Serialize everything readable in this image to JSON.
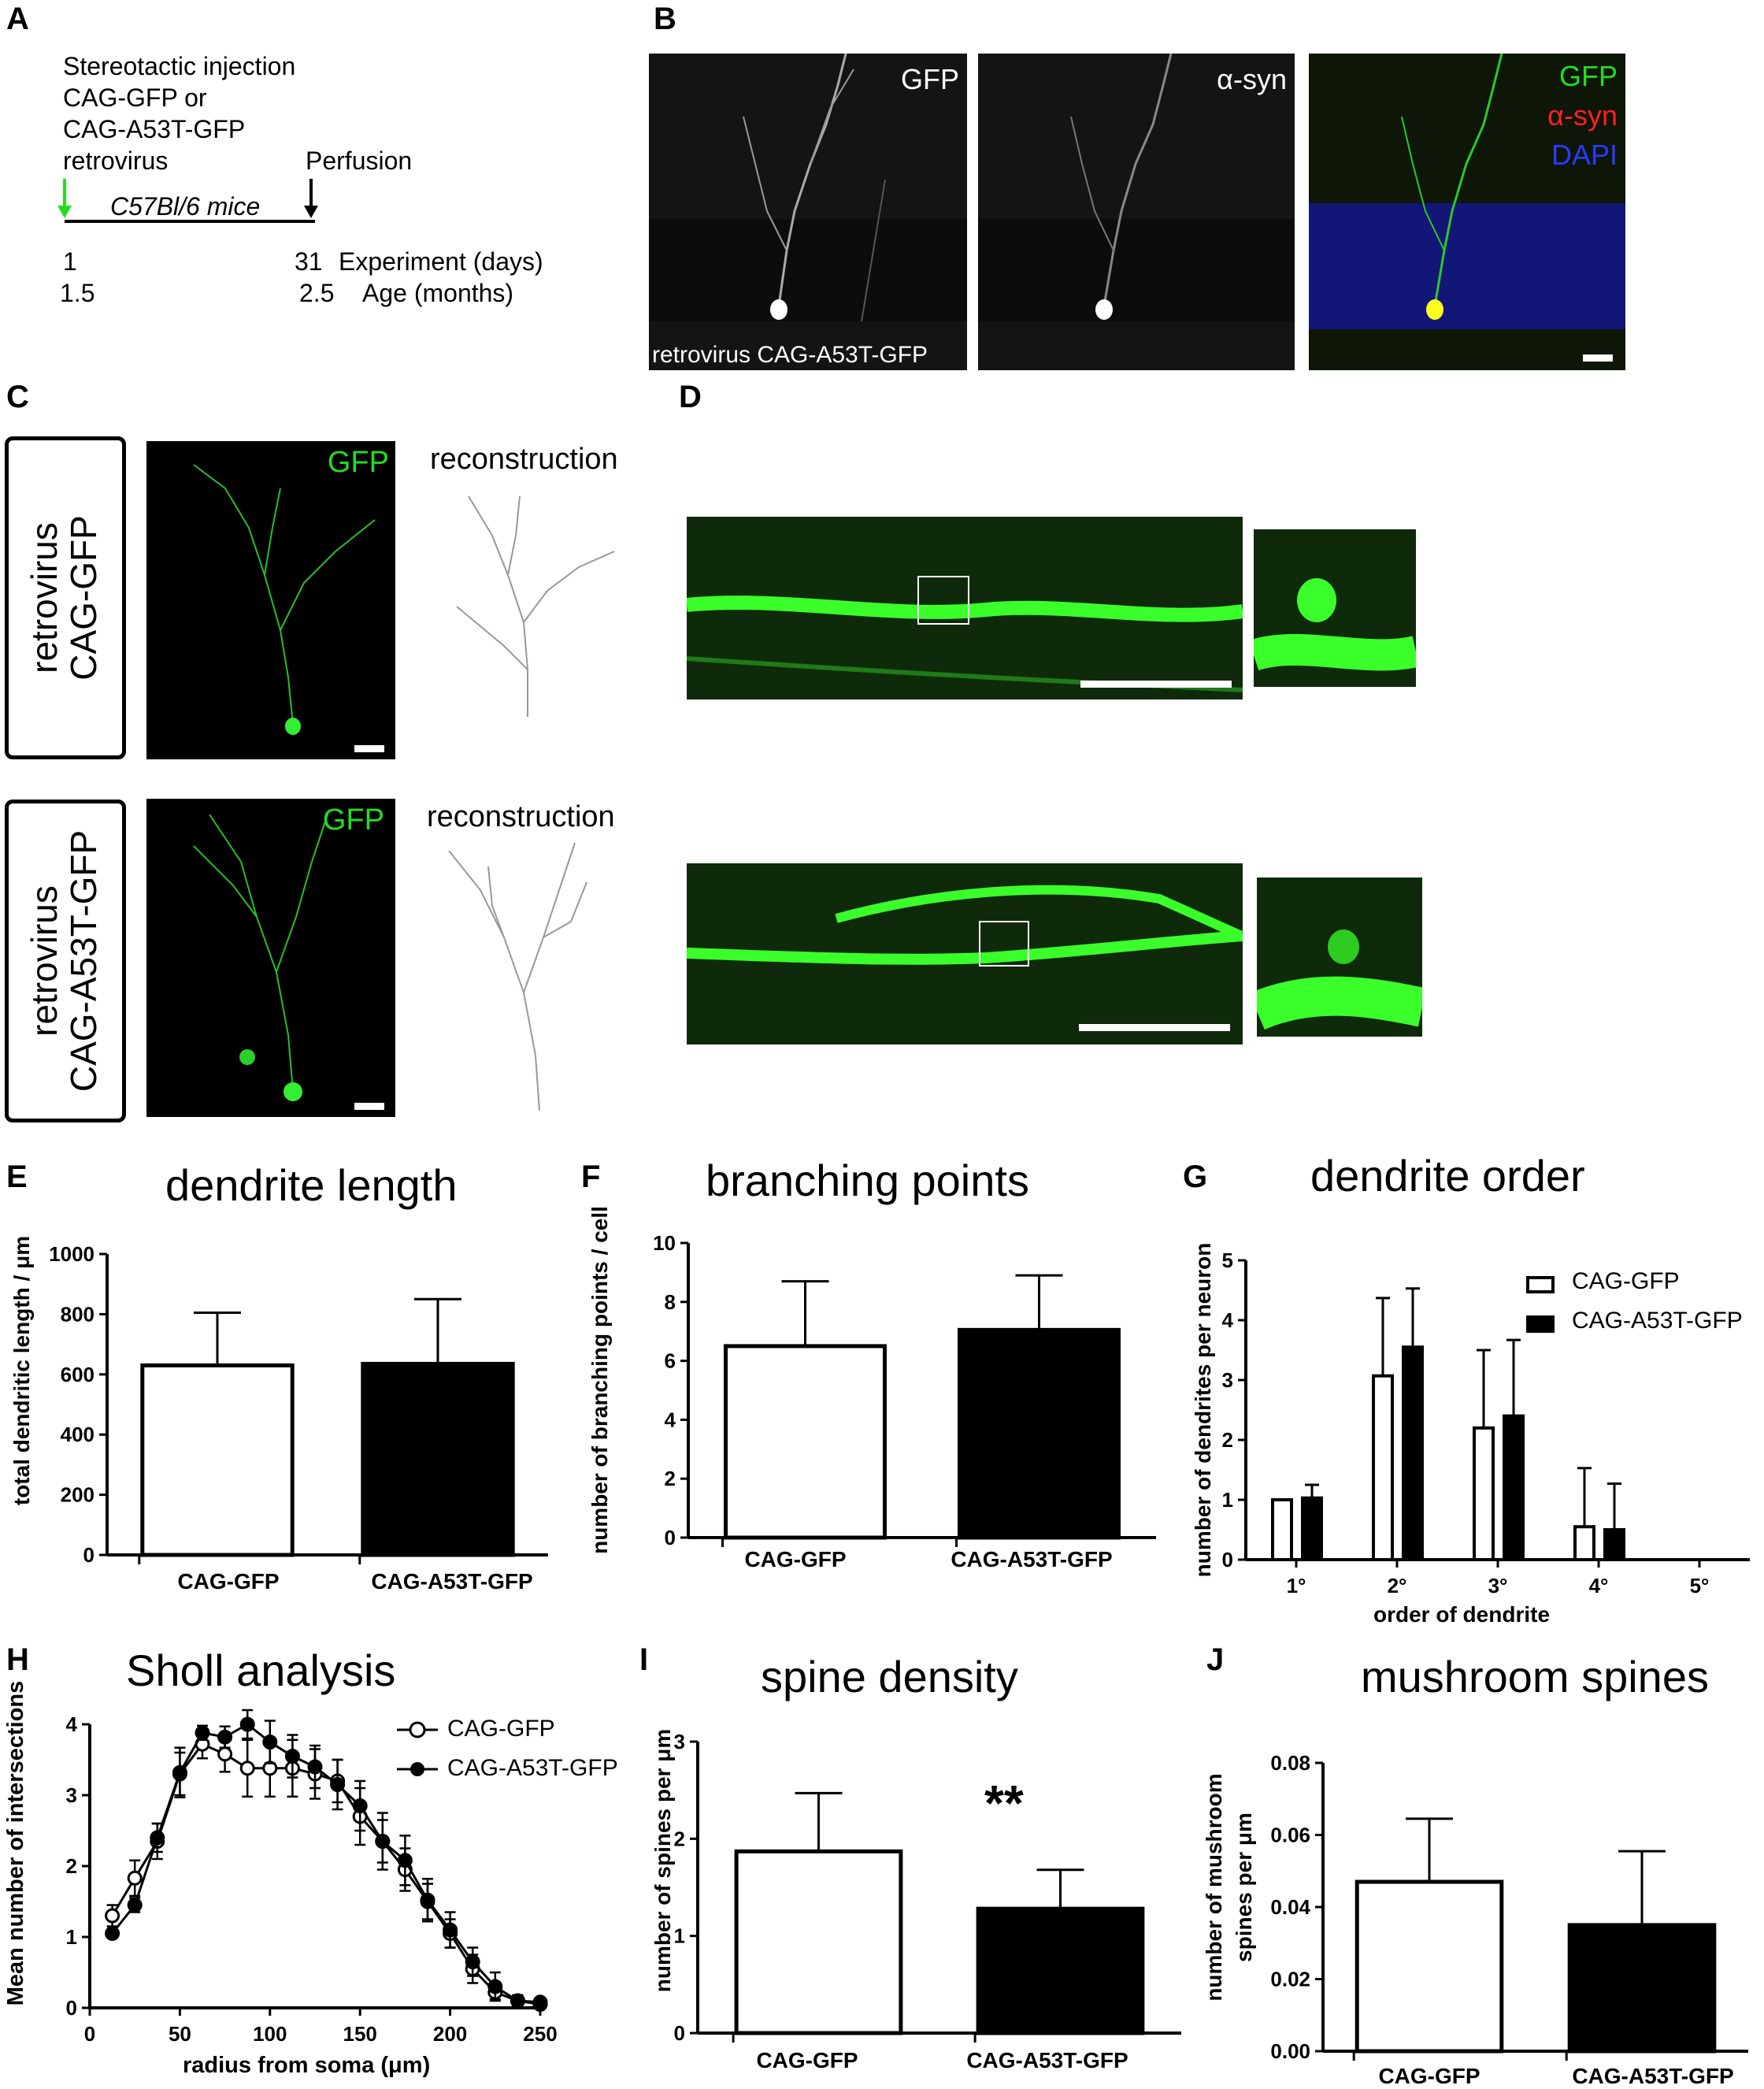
{
  "panel_letters": {
    "A": "A",
    "B": "B",
    "C": "C",
    "D": "D",
    "E": "E",
    "F": "F",
    "G": "G",
    "H": "H",
    "I": "I",
    "J": "J"
  },
  "panel_a": {
    "lines": [
      "Stereotactic injection",
      "CAG-GFP or",
      "CAG-A53T-GFP",
      "retrovirus"
    ],
    "perfusion": "Perfusion",
    "mice": "C57Bl/6 mice",
    "start_day": "1",
    "end_day": "31",
    "experiment_label": "Experiment (days)",
    "start_age": "1.5",
    "end_age": "2.5",
    "age_label": "Age (months)",
    "colors": {
      "injection_arrow": "#22dd22"
    }
  },
  "panel_b": {
    "gfp": "GFP",
    "asyn": "α-syn",
    "merge_gfp": "GFP",
    "merge_asyn": "α-syn",
    "merge_dapi": "DAPI",
    "caption": "retrovirus CAG-A53T-GFP",
    "colors": {
      "gfp": "#22dd22",
      "asyn": "#ff2020",
      "dapi": "#2a3aff"
    }
  },
  "panel_c": {
    "row1_label_1": "retrovirus",
    "row1_label_2": "CAG-GFP",
    "row2_label_1": "retrovirus",
    "row2_label_2": "CAG-A53T-GFP",
    "gfp": "GFP",
    "reconstruction": "reconstruction"
  },
  "chart_data": [
    {
      "panel": "E",
      "type": "bar",
      "title": "dendrite length",
      "ylabel": "total dendritic length / μm",
      "categories": [
        "CAG-GFP",
        "CAG-A53T-GFP"
      ],
      "values": [
        630,
        635
      ],
      "errors": [
        175,
        215
      ],
      "ylim": [
        0,
        1000
      ],
      "yticks": [
        "0",
        "200",
        "400",
        "600",
        "800",
        "1000"
      ],
      "colors": [
        "#ffffff",
        "#000000"
      ]
    },
    {
      "panel": "F",
      "type": "bar",
      "title": "branching points",
      "ylabel": "number of branching points / cell",
      "categories": [
        "CAG-GFP",
        "CAG-A53T-GFP"
      ],
      "values": [
        6.5,
        7.05
      ],
      "errors": [
        2.2,
        1.85
      ],
      "ylim": [
        0,
        10
      ],
      "yticks": [
        "0",
        "2",
        "4",
        "6",
        "8",
        "10"
      ],
      "colors": [
        "#ffffff",
        "#000000"
      ]
    },
    {
      "panel": "G",
      "type": "bar",
      "title": "dendrite order",
      "ylabel": "number of dendrites per neuron",
      "xlabel": "order of dendrite",
      "categories": [
        "1°",
        "2°",
        "3°",
        "4°",
        "5°"
      ],
      "series": [
        {
          "name": "CAG-GFP",
          "values": [
            1.0,
            3.07,
            2.2,
            0.55,
            0
          ],
          "errors": [
            0,
            1.3,
            1.3,
            0.98,
            0
          ]
        },
        {
          "name": "CAG-A53T-GFP",
          "values": [
            1.03,
            3.55,
            2.4,
            0.5,
            0
          ],
          "errors": [
            0.22,
            0.98,
            1.27,
            0.77,
            0
          ]
        }
      ],
      "ylim": [
        0,
        5
      ],
      "yticks": [
        "0",
        "1",
        "2",
        "3",
        "4",
        "5"
      ],
      "legend": "top-right",
      "colors": [
        "#ffffff",
        "#000000"
      ]
    },
    {
      "panel": "H",
      "type": "line",
      "title": "Sholl analysis",
      "ylabel": "Mean number of intersections",
      "xlabel": "radius from soma (μm)",
      "x": [
        12.5,
        25,
        37.5,
        50,
        62.5,
        75,
        87.5,
        100,
        112.5,
        125,
        137.5,
        150,
        162.5,
        175,
        187.5,
        200,
        212.5,
        225,
        237.5,
        250
      ],
      "series": [
        {
          "name": "CAG-GFP",
          "values": [
            1.3,
            1.83,
            2.35,
            3.3,
            3.72,
            3.58,
            3.38,
            3.38,
            3.38,
            3.3,
            3.2,
            2.7,
            2.35,
            1.95,
            1.5,
            1.05,
            0.55,
            0.22,
            0.1,
            0.05
          ],
          "errors": [
            0.15,
            0.25,
            0.25,
            0.3,
            0.2,
            0.25,
            0.4,
            0.4,
            0.4,
            0.35,
            0.3,
            0.4,
            0.4,
            0.3,
            0.25,
            0.2,
            0.2,
            0.1,
            0.08,
            0.05
          ]
        },
        {
          "name": "CAG-A53T-GFP",
          "values": [
            1.05,
            1.45,
            2.4,
            3.32,
            3.88,
            3.82,
            4.0,
            3.75,
            3.55,
            3.4,
            3.15,
            2.85,
            2.35,
            2.08,
            1.52,
            1.1,
            0.65,
            0.3,
            0.1,
            0.08
          ],
          "errors": [
            0.05,
            0.1,
            0.2,
            0.35,
            0.1,
            0.15,
            0.2,
            0.3,
            0.3,
            0.3,
            0.35,
            0.35,
            0.3,
            0.35,
            0.3,
            0.25,
            0.2,
            0.2,
            0.08,
            0.05
          ]
        }
      ],
      "xlim": [
        0,
        250
      ],
      "ylim": [
        0,
        4
      ],
      "xticks": [
        "0",
        "50",
        "100",
        "150",
        "200",
        "250"
      ],
      "yticks": [
        "0",
        "1",
        "2",
        "3",
        "4"
      ],
      "legend": "top-right"
    },
    {
      "panel": "I",
      "type": "bar",
      "title": "spine density",
      "ylabel": "number of spines per μm",
      "categories": [
        "CAG-GFP",
        "CAG-A53T-GFP"
      ],
      "values": [
        1.87,
        1.28
      ],
      "errors": [
        0.6,
        0.4
      ],
      "ylim": [
        0,
        3
      ],
      "yticks": [
        "0",
        "1",
        "2",
        "3"
      ],
      "significance": "**",
      "colors": [
        "#ffffff",
        "#000000"
      ]
    },
    {
      "panel": "J",
      "type": "bar",
      "title": "mushroom spines",
      "ylabel_1": "number of mushroom",
      "ylabel_2": "spines per μm",
      "categories": [
        "CAG-GFP",
        "CAG-A53T-GFP"
      ],
      "values": [
        0.047,
        0.035
      ],
      "errors": [
        0.0175,
        0.0205
      ],
      "ylim": [
        0,
        0.08
      ],
      "yticks": [
        "0.00",
        "0.02",
        "0.04",
        "0.06",
        "0.08"
      ],
      "colors": [
        "#ffffff",
        "#000000"
      ]
    }
  ]
}
